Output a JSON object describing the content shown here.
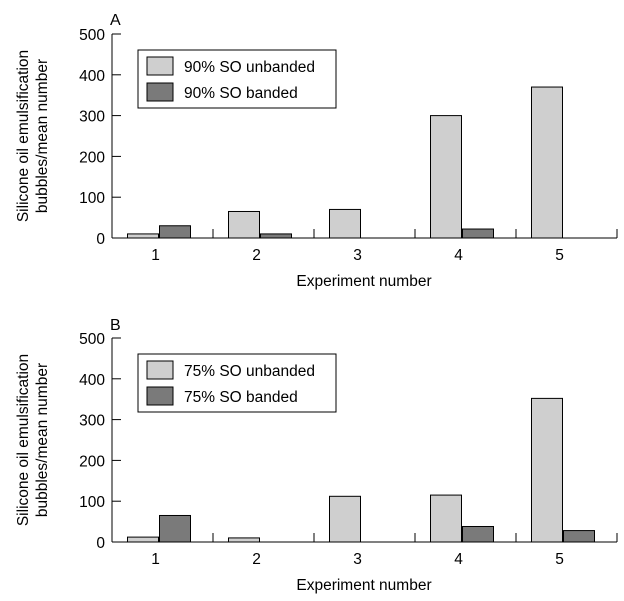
{
  "chart_data": [
    {
      "type": "bar",
      "panel_label": "A",
      "categories": [
        "1",
        "2",
        "3",
        "4",
        "5"
      ],
      "series": [
        {
          "name": "90% SO unbanded",
          "color": "#cfcfcf",
          "values": [
            10,
            65,
            70,
            300,
            370
          ]
        },
        {
          "name": "90% SO banded",
          "color": "#7a7a7a",
          "values": [
            30,
            10,
            0,
            22,
            0
          ]
        }
      ],
      "xlabel": "Experiment number",
      "ylabel": [
        "Silicone oil emulsification",
        "bubbles/mean number"
      ],
      "ylim": [
        0,
        500
      ],
      "yticks": [
        0,
        100,
        200,
        300,
        400,
        500
      ],
      "legend_position": "top-left",
      "grid": false
    },
    {
      "type": "bar",
      "panel_label": "B",
      "categories": [
        "1",
        "2",
        "3",
        "4",
        "5"
      ],
      "series": [
        {
          "name": "75% SO unbanded",
          "color": "#cfcfcf",
          "values": [
            12,
            10,
            112,
            115,
            352
          ]
        },
        {
          "name": "75% SO banded",
          "color": "#7a7a7a",
          "values": [
            65,
            0,
            0,
            38,
            28
          ]
        }
      ],
      "xlabel": "Experiment number",
      "ylabel": [
        "Silicone oil emulsification",
        "bubbles/mean number"
      ],
      "ylim": [
        0,
        500
      ],
      "yticks": [
        0,
        100,
        200,
        300,
        400,
        500
      ],
      "legend_position": "top-left",
      "grid": false
    }
  ]
}
